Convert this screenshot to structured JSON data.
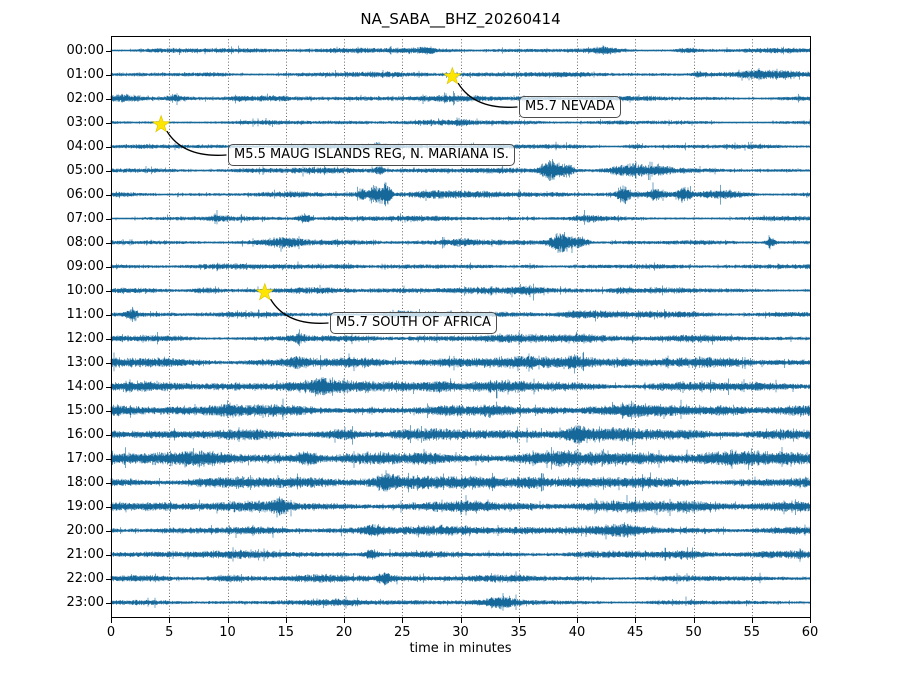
{
  "figure": {
    "title": "NA_SABA__BHZ_20260414",
    "xlabel": "time in minutes"
  },
  "chart_data": {
    "type": "line",
    "subtype": "seismogram-dayplot",
    "title": "NA_SABA__BHZ_20260414",
    "xlabel": "time in minutes",
    "xlim": [
      0,
      60
    ],
    "xticks": [
      0,
      5,
      10,
      15,
      20,
      25,
      30,
      35,
      40,
      45,
      50,
      55,
      60
    ],
    "grid": "vertical dotted lines every 5 minutes",
    "legend": "none",
    "trace_color": "#16689a",
    "star_color": "#ffe500",
    "frame_color": "#000000",
    "grid_color": "#444444",
    "rows": [
      {
        "label": "00:00",
        "base": 3.0,
        "events": [
          {
            "m": 27,
            "w": 0.5,
            "a": 1.5
          },
          {
            "m": 42.5,
            "w": 0.8,
            "a": 2.0
          },
          {
            "m": 49.5,
            "w": 0.6,
            "a": 1.5
          }
        ]
      },
      {
        "label": "01:00",
        "base": 3.0,
        "events": [
          {
            "m": 50.5,
            "w": 0.5,
            "a": 1.5
          },
          {
            "m": 57,
            "w": 2.0,
            "a": 3.0
          }
        ]
      },
      {
        "label": "02:00",
        "base": 3.3,
        "events": [
          {
            "m": 1.5,
            "w": 1.2,
            "a": 2.5
          },
          {
            "m": 5.5,
            "w": 0.8,
            "a": 2.0
          },
          {
            "m": 11,
            "w": 0.5,
            "a": 1.2
          }
        ]
      },
      {
        "label": "03:00",
        "base": 2.7,
        "events": [
          {
            "m": 30,
            "w": 0.6,
            "a": 1.0
          }
        ]
      },
      {
        "label": "04:00",
        "base": 2.9,
        "events": [
          {
            "m": 23,
            "w": 0.4,
            "a": 1.6
          },
          {
            "m": 45,
            "w": 0.6,
            "a": 1.6
          }
        ]
      },
      {
        "label": "05:00",
        "base": 3.2,
        "events": [
          {
            "m": 23,
            "w": 0.3,
            "a": 3.0
          },
          {
            "m": 37.8,
            "w": 0.6,
            "a": 8.5
          },
          {
            "m": 39.2,
            "w": 0.4,
            "a": 5.0
          },
          {
            "m": 44.5,
            "w": 1.2,
            "a": 5.0
          },
          {
            "m": 47,
            "w": 0.8,
            "a": 3.0
          }
        ]
      },
      {
        "label": "06:00",
        "base": 3.4,
        "events": [
          {
            "m": 21.5,
            "w": 0.3,
            "a": 4.0
          },
          {
            "m": 22.6,
            "w": 0.35,
            "a": 7.5
          },
          {
            "m": 23.6,
            "w": 0.3,
            "a": 9.5
          },
          {
            "m": 27.5,
            "w": 1.2,
            "a": 2.0
          },
          {
            "m": 44,
            "w": 0.4,
            "a": 6.5
          },
          {
            "m": 46.8,
            "w": 0.5,
            "a": 3.0
          },
          {
            "m": 49.2,
            "w": 0.4,
            "a": 5.5
          },
          {
            "m": 52.5,
            "w": 1.5,
            "a": 2.5
          }
        ]
      },
      {
        "label": "07:00",
        "base": 2.9,
        "events": [
          {
            "m": 9,
            "w": 0.5,
            "a": 1.5
          },
          {
            "m": 16.6,
            "w": 0.4,
            "a": 3.5
          },
          {
            "m": 41,
            "w": 0.8,
            "a": 1.5
          }
        ]
      },
      {
        "label": "08:00",
        "base": 3.1,
        "events": [
          {
            "m": 15,
            "w": 1.0,
            "a": 3.0
          },
          {
            "m": 30,
            "w": 1.0,
            "a": 1.5
          },
          {
            "m": 38.7,
            "w": 0.7,
            "a": 8.5
          },
          {
            "m": 40.3,
            "w": 0.5,
            "a": 4.0
          },
          {
            "m": 56.6,
            "w": 0.25,
            "a": 5.0
          }
        ]
      },
      {
        "label": "09:00",
        "base": 2.9,
        "events": [
          {
            "m": 20,
            "w": 1.0,
            "a": 1.2
          },
          {
            "m": 36,
            "w": 0.8,
            "a": 1.2
          }
        ]
      },
      {
        "label": "10:00",
        "base": 3.6,
        "events": [
          {
            "m": 8,
            "w": 1.0,
            "a": 1.5
          },
          {
            "m": 36,
            "w": 1.0,
            "a": 2.0
          },
          {
            "m": 44,
            "w": 0.8,
            "a": 2.0
          }
        ]
      },
      {
        "label": "11:00",
        "base": 3.7,
        "events": [
          {
            "m": 1.8,
            "w": 0.3,
            "a": 4.0
          },
          {
            "m": 25,
            "w": 0.8,
            "a": 2.0
          },
          {
            "m": 40,
            "w": 1.0,
            "a": 2.0
          }
        ]
      },
      {
        "label": "12:00",
        "base": 4.1,
        "events": [
          {
            "m": 16,
            "w": 0.6,
            "a": 3.0
          },
          {
            "m": 40,
            "w": 1.5,
            "a": 2.0
          }
        ]
      },
      {
        "label": "13:00",
        "base": 6.2,
        "events": [
          {
            "m": 16,
            "w": 0.6,
            "a": 3.0
          },
          {
            "m": 40,
            "w": 1.0,
            "a": 3.0
          }
        ]
      },
      {
        "label": "14:00",
        "base": 6.6,
        "events": [
          {
            "m": 18,
            "w": 0.5,
            "a": 4.0
          },
          {
            "m": 28,
            "w": 1.0,
            "a": 2.5
          }
        ]
      },
      {
        "label": "15:00",
        "base": 6.6,
        "events": [
          {
            "m": 10,
            "w": 1.0,
            "a": 2.0
          },
          {
            "m": 33,
            "w": 1.0,
            "a": 2.5
          }
        ]
      },
      {
        "label": "16:00",
        "base": 6.8,
        "events": [
          {
            "m": 20,
            "w": 1.0,
            "a": 2.5
          },
          {
            "m": 40,
            "w": 0.6,
            "a": 4.0
          }
        ]
      },
      {
        "label": "17:00",
        "base": 8.0,
        "events": [
          {
            "m": 17,
            "w": 0.6,
            "a": 4.0
          },
          {
            "m": 27,
            "w": 0.8,
            "a": 3.0
          }
        ]
      },
      {
        "label": "18:00",
        "base": 7.2,
        "events": [
          {
            "m": 23.5,
            "w": 0.5,
            "a": 4.0
          },
          {
            "m": 36,
            "w": 1.0,
            "a": 3.0
          }
        ]
      },
      {
        "label": "19:00",
        "base": 6.2,
        "events": [
          {
            "m": 14.5,
            "w": 0.6,
            "a": 4.0
          },
          {
            "m": 31,
            "w": 1.0,
            "a": 2.5
          }
        ]
      },
      {
        "label": "20:00",
        "base": 5.2,
        "events": [
          {
            "m": 22.5,
            "w": 0.6,
            "a": 3.0
          },
          {
            "m": 44,
            "w": 1.0,
            "a": 2.0
          }
        ]
      },
      {
        "label": "21:00",
        "base": 4.3,
        "events": [
          {
            "m": 22.4,
            "w": 0.4,
            "a": 3.5
          },
          {
            "m": 49,
            "w": 1.0,
            "a": 1.5
          }
        ]
      },
      {
        "label": "22:00",
        "base": 4.0,
        "events": [
          {
            "m": 10,
            "w": 1.0,
            "a": 1.5
          },
          {
            "m": 23.5,
            "w": 0.4,
            "a": 4.0
          }
        ]
      },
      {
        "label": "23:00",
        "base": 3.3,
        "events": [
          {
            "m": 20,
            "w": 1.0,
            "a": 1.0
          },
          {
            "m": 33.5,
            "w": 0.8,
            "a": 3.0
          }
        ]
      }
    ],
    "annotations": [
      {
        "label": "M5.7 NEVADA",
        "row_label": "01:00",
        "row": 1,
        "minute": 29.3,
        "box_x": 519,
        "box_y": 96
      },
      {
        "label": "M5.5 MAUG ISLANDS REG, N. MARIANA IS.",
        "row_label": "03:00",
        "row": 3,
        "minute": 4.3,
        "box_x": 228,
        "box_y": 144
      },
      {
        "label": "M5.7 SOUTH OF AFRICA",
        "row_label": "10:00",
        "row": 10,
        "minute": 13.2,
        "box_x": 330,
        "box_y": 312
      }
    ]
  }
}
